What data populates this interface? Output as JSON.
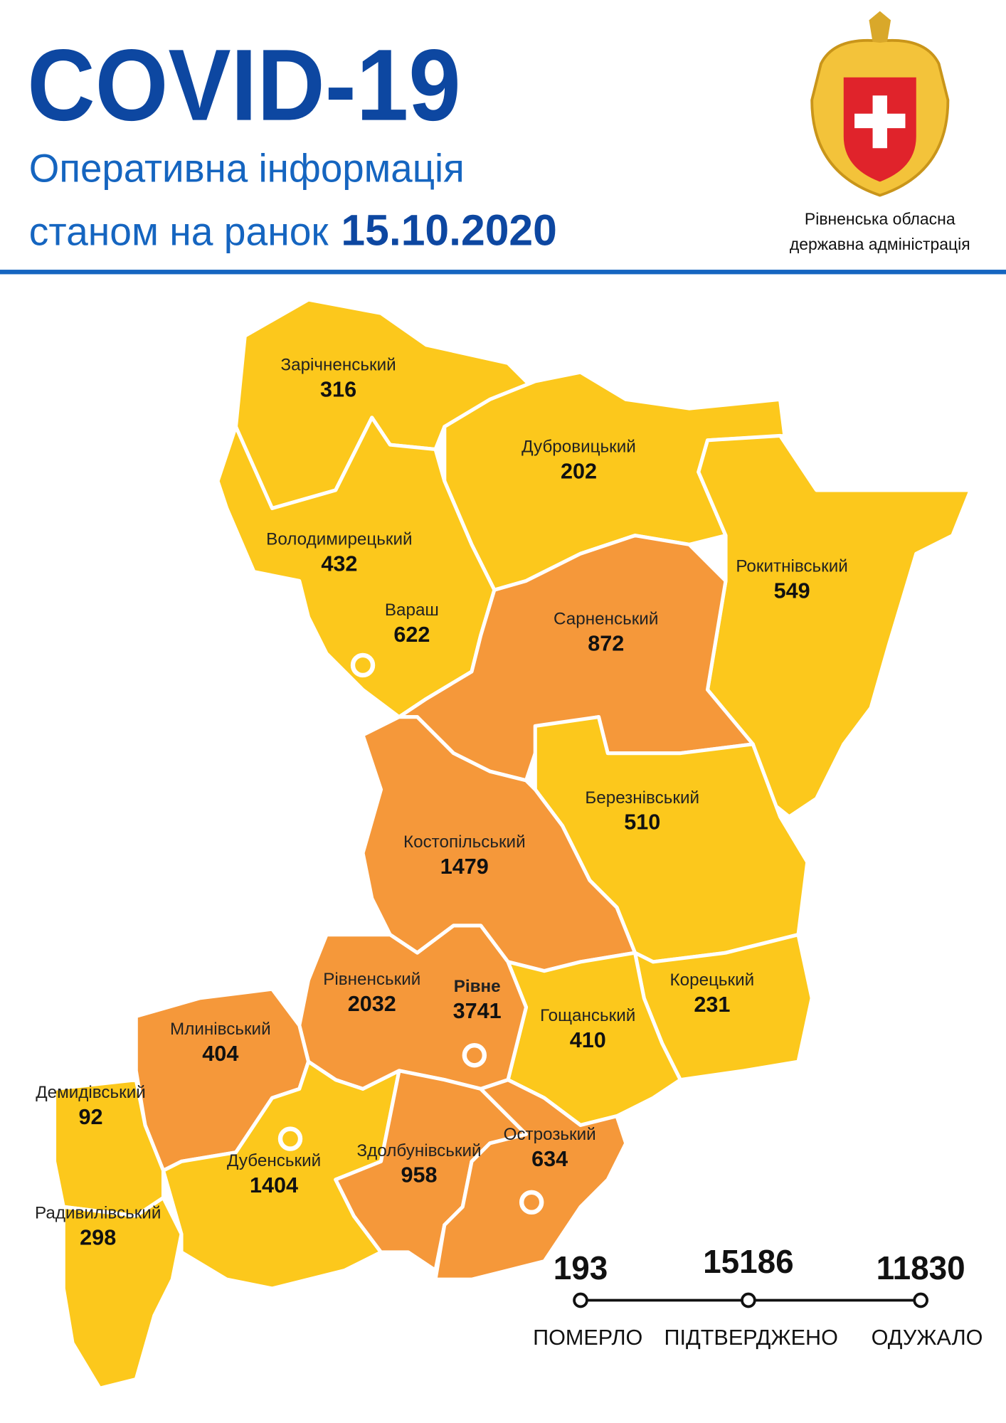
{
  "header": {
    "title": "COVID-19",
    "subtitle": "Оперативна інформація",
    "date_prefix": "станом на ранок",
    "date": "15.10.2020"
  },
  "emblem": {
    "caption": [
      "Рівненська обласна",
      "державна адміністрація"
    ]
  },
  "districts": [
    {
      "name": "Зарічненський",
      "cases": 316
    },
    {
      "name": "Дубровицький",
      "cases": 202
    },
    {
      "name": "Володимирецький",
      "cases": 432
    },
    {
      "name": "Вараш",
      "cases": 622
    },
    {
      "name": "Рокитнівський",
      "cases": 549
    },
    {
      "name": "Сарненський",
      "cases": 872
    },
    {
      "name": "Березнівський",
      "cases": 510
    },
    {
      "name": "Костопільський",
      "cases": 1479
    },
    {
      "name": "Рівненський",
      "cases": 2032
    },
    {
      "name": "Рівне",
      "cases": 3741
    },
    {
      "name": "Корецький",
      "cases": 231
    },
    {
      "name": "Гощанський",
      "cases": 410
    },
    {
      "name": "Млинівський",
      "cases": 404
    },
    {
      "name": "Демидівський",
      "cases": 92
    },
    {
      "name": "Острозький",
      "cases": 634
    },
    {
      "name": "Здолбунівський",
      "cases": 958
    },
    {
      "name": "Дубенський",
      "cases": 1404
    },
    {
      "name": "Радивилівський",
      "cases": 298
    }
  ],
  "stats": [
    {
      "value": 193,
      "label": "ПОМЕРЛО"
    },
    {
      "value": 15186,
      "label": "ПІДТВЕРДЖЕНО"
    },
    {
      "value": 11830,
      "label": "ОДУЖАЛО"
    }
  ]
}
